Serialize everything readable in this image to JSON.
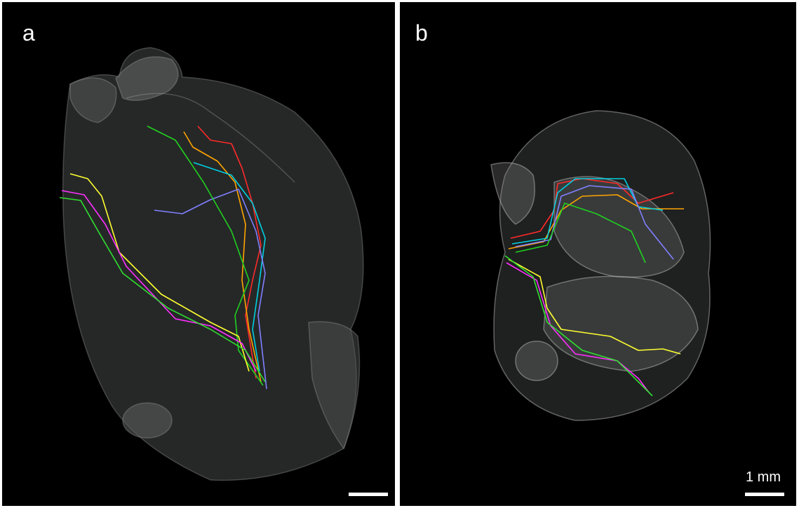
{
  "panels": [
    {
      "label": "a"
    },
    {
      "label": "b"
    }
  ],
  "scale_bar": {
    "label": "1 mm"
  }
}
